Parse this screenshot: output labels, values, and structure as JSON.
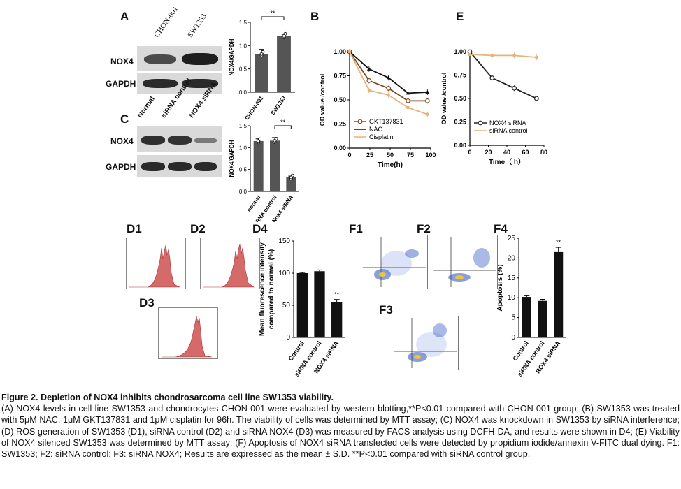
{
  "panels": {
    "A": "A",
    "B": "B",
    "C": "C",
    "E": "E",
    "D1": "D1",
    "D2": "D2",
    "D3": "D3",
    "D4": "D4",
    "F1": "F1",
    "F2": "F2",
    "F3": "F3",
    "F4": "F4"
  },
  "blotA": {
    "lanes": [
      "CHON-001",
      "SW1353"
    ],
    "rows": [
      "NOX4",
      "GAPDH"
    ]
  },
  "blotC": {
    "lanes": [
      "Normal",
      "siRNA control",
      "NOX4 siRNA"
    ],
    "rows": [
      "NOX4",
      "GAPDH"
    ]
  },
  "colors": {
    "bar": "#555555",
    "flow_fill": "#d46a6a",
    "line_dark": "#222222",
    "line_orange": "#e8b27a"
  },
  "chart_data": [
    {
      "id": "A-bar",
      "type": "bar",
      "categories": [
        "CHON-001",
        "SW1353"
      ],
      "values": [
        0.82,
        1.21
      ],
      "errors": [
        0.1,
        0.04
      ],
      "ylabel": "NOX4/GAPDH",
      "ylim": [
        0,
        1.5
      ],
      "yticks": [
        "0.0",
        "0.5",
        "1.0",
        "1.5"
      ],
      "significance": "**"
    },
    {
      "id": "C-bar",
      "type": "bar",
      "categories": [
        "normal",
        "siRNA control",
        "Nox4 siRNA"
      ],
      "values": [
        1.15,
        1.16,
        0.32
      ],
      "errors": [
        0.05,
        0.07,
        0.03
      ],
      "ylabel": "NOX4/GAPDH",
      "ylim": [
        0,
        1.5
      ],
      "yticks": [
        "0.0",
        "0.5",
        "1.0",
        "1.5"
      ],
      "significance": "**"
    },
    {
      "id": "B-line",
      "type": "line",
      "x": [
        0,
        24,
        48,
        72,
        96
      ],
      "xticks": [
        "0",
        "25",
        "50",
        "75",
        "100"
      ],
      "xlabel": "Time(h)",
      "ylabel": "OD value /control",
      "ylim": [
        0,
        1.0
      ],
      "yticks": [
        "0.00",
        "0.25",
        "0.50",
        "0.75",
        "1.00"
      ],
      "legend": "bottom-left",
      "series": [
        {
          "name": "GKT137831",
          "values": [
            1.0,
            0.7,
            0.62,
            0.49,
            0.49
          ]
        },
        {
          "name": "NAC",
          "values": [
            1.0,
            0.82,
            0.73,
            0.57,
            0.58
          ]
        },
        {
          "name": "Cisplatin",
          "values": [
            1.0,
            0.6,
            0.55,
            0.42,
            0.35
          ]
        }
      ]
    },
    {
      "id": "E-line",
      "type": "line",
      "x": [
        0,
        24,
        48,
        72
      ],
      "xticks": [
        "0",
        "20",
        "40",
        "60",
        "80"
      ],
      "xlabel": "Time（ h）",
      "ylabel": "OD value /control",
      "ylim": [
        0,
        1.0
      ],
      "yticks": [
        "0.00",
        "0.25",
        "0.50",
        "0.75",
        "1.00"
      ],
      "legend": "bottom-left",
      "series": [
        {
          "name": "NOX4 siRNA",
          "values": [
            1.0,
            0.72,
            0.61,
            0.5
          ]
        },
        {
          "name": "siRNA control",
          "values": [
            0.97,
            0.96,
            0.96,
            0.94
          ]
        }
      ]
    },
    {
      "id": "D4-bar",
      "type": "bar",
      "categories": [
        "Control",
        "siRNA control",
        "NOX4 siRNA"
      ],
      "values": [
        100,
        103,
        55
      ],
      "errors": [
        1,
        2,
        4
      ],
      "ylabel": "Mean fluorescence intensity compared to normal (%)",
      "ylim": [
        0,
        150
      ],
      "yticks": [
        "0",
        "50",
        "100",
        "150"
      ],
      "significance": "**"
    },
    {
      "id": "F4-bar",
      "type": "bar",
      "categories": [
        "Control",
        "siRNA control",
        "ROX4 siRNA"
      ],
      "values": [
        10.2,
        9.2,
        21.5
      ],
      "errors": [
        0.3,
        0.4,
        1.2
      ],
      "ylabel": "Apoptosis (%)",
      "ylim": [
        0,
        25
      ],
      "yticks": [
        "0",
        "5",
        "10",
        "15",
        "20",
        "25"
      ],
      "significance": "**"
    }
  ],
  "caption": {
    "title": "Figure 2. Depletion of NOX4 inhibits chondrosarcoma cell line SW1353 viability.",
    "line1": "(A) NOX4 levels in cell line SW1353 and chondrocytes CHON-001 were evaluated by western blotting,**P<0.01 compared with CHON-001 group; (B) SW1353 was treated with 5μM NAC, 1μM GKT137831 and 1μM cisplatin for 96h. The viability of cells was determined by MTT assay; (C) NOX4 was knockdown in SW1353 by siRNA interference; (D) ROS generation of SW1353 (D1), siRNA control (D2) and siRNA NOX4 (D3) was measured by FACS analysis using DCFH-DA, and results were shown in D4; (E) Viability of NOX4 silenced SW1353 was determined by MTT assay; (F) Apoptosis of NOX4 siRNA transfected cells were detected by propidium iodide/annexin V-FITC dual dying. F1: SW1353; F2: siRNA control; F3: siRNA NOX4; Results are expressed as the mean ± S.D. **P<0.01 compared with siRNA control group."
  }
}
